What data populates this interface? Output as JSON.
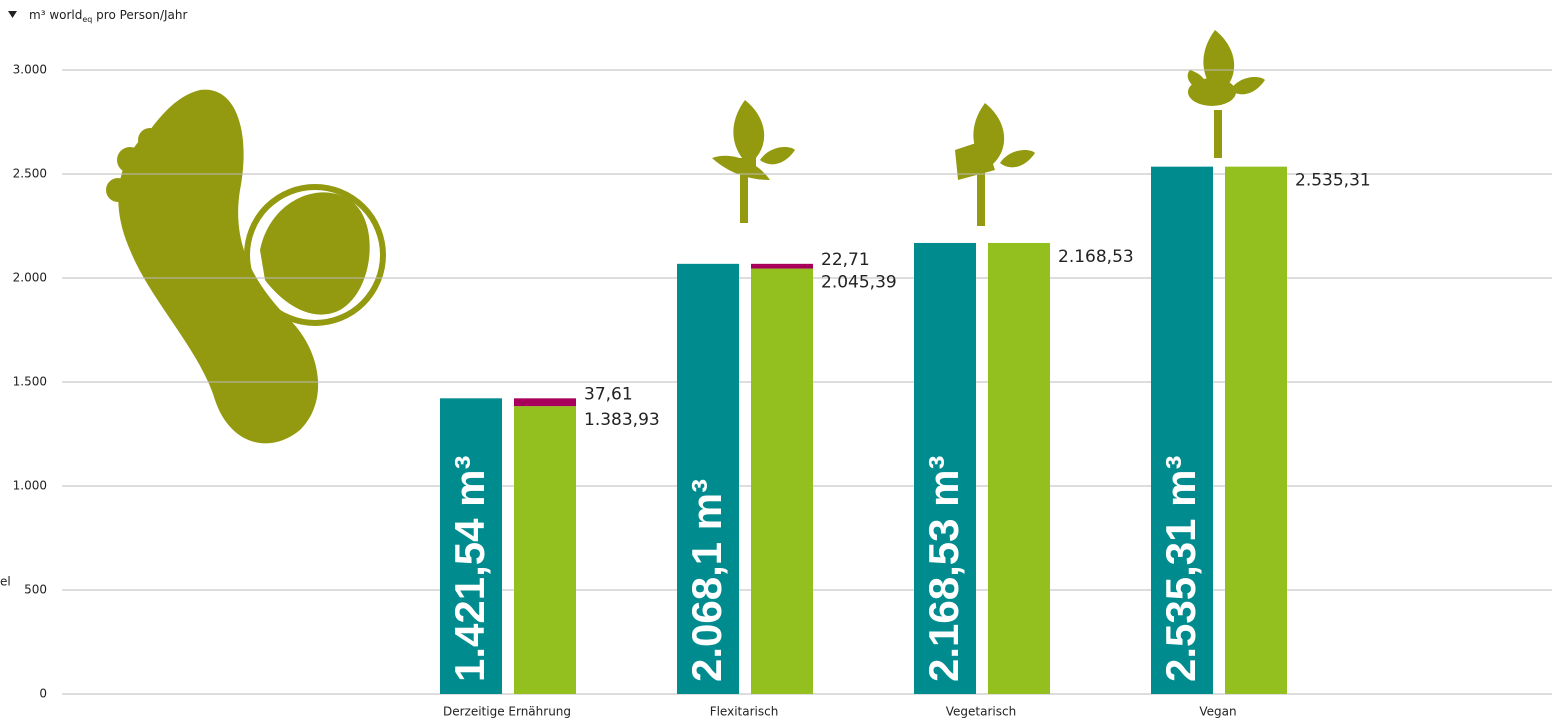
{
  "chart_data": {
    "type": "bar",
    "y_label": {
      "main": "m³ world",
      "sub": "eq",
      "rest": " pro Person/Jahr"
    },
    "side_label": "el",
    "categories": [
      "Derzeitige Ernährung",
      "Flexitarisch",
      "Vegetarisch",
      "Vegan"
    ],
    "series": [
      {
        "color": "#008c8f",
        "values": [
          1421.54,
          2068.1,
          2168.53,
          2535.31
        ],
        "value_labels": [
          "1.421,54 m³",
          "2.068,1 m³",
          "2.168,53 m³",
          "2.535,31 m³"
        ]
      },
      {
        "color": "#93c01f",
        "values": [
          1383.93,
          2045.39,
          2168.53,
          2535.31
        ],
        "value_labels": [
          "1.383,93",
          "2.045,39",
          "2.168,53",
          "2.535,31"
        ]
      },
      {
        "color": "#a8005a",
        "stack_on": 1,
        "values": [
          37.61,
          22.71,
          null,
          null
        ],
        "value_labels": [
          "37,61",
          "22,71",
          null,
          null
        ]
      }
    ],
    "ylim": [
      0,
      3000
    ],
    "yticks": [
      0,
      500,
      {
        "value": 1000,
        "label": "1.000"
      },
      {
        "value": 1500,
        "label": "1.500"
      },
      {
        "value": 2000,
        "label": "2.000"
      },
      {
        "value": 2500,
        "label": "2.500"
      },
      {
        "value": 3000,
        "label": "3.000"
      }
    ],
    "grid": true
  }
}
